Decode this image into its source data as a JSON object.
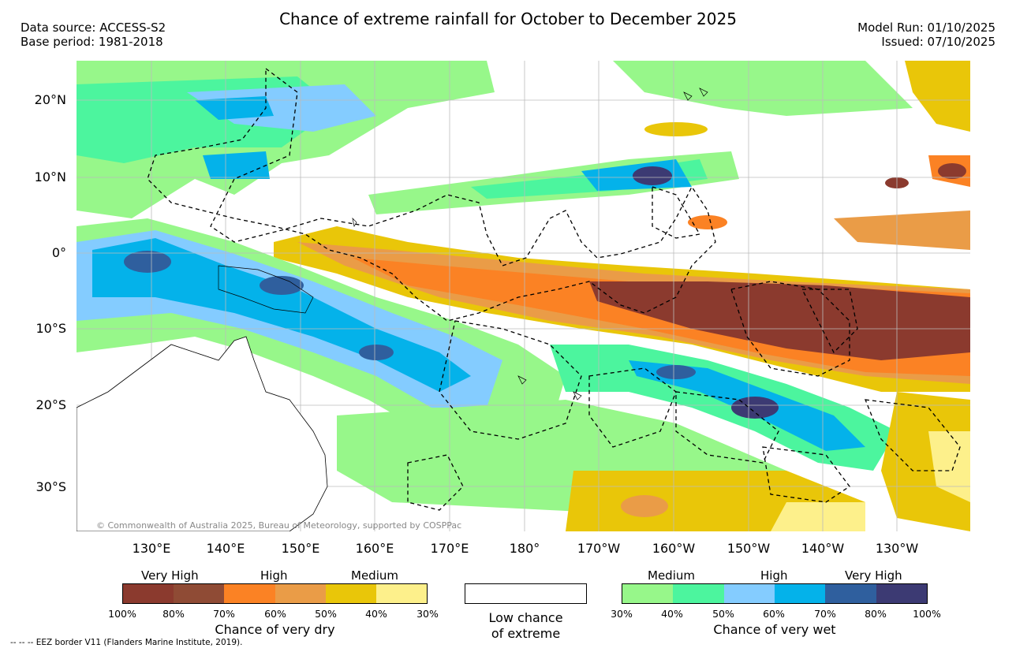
{
  "header": {
    "data_source": "Data source: ACCESS-S2",
    "base_period": "Base period: 1981-2018",
    "title": "Chance of extreme rainfall for October to December 2025",
    "model_run": "Model Run: 01/10/2025",
    "issued": "Issued: 07/10/2025"
  },
  "map": {
    "lat_labels": [
      "20°N",
      "10°N",
      "0°",
      "10°S",
      "20°S",
      "30°S"
    ],
    "lon_labels": [
      "130°E",
      "140°E",
      "150°E",
      "160°E",
      "170°E",
      "180°",
      "170°W",
      "160°W",
      "150°W",
      "140°W",
      "130°W"
    ],
    "copyright": "© Commonwealth of Australia 2025, Bureau of Meteorology, supported by COSPPac"
  },
  "legend_dry": {
    "headers": [
      "Very High",
      "High",
      "Medium"
    ],
    "ticks": [
      "100%",
      "80%",
      "70%",
      "60%",
      "50%",
      "40%",
      "30%"
    ],
    "caption": "Chance of very dry",
    "colors": [
      "#8b3a2e",
      "#8f4b35",
      "#fb8224",
      "#ea9c47",
      "#e9c609",
      "#fdf08b"
    ]
  },
  "legend_low": {
    "caption_line1": "Low chance",
    "caption_line2": "of extreme"
  },
  "legend_wet": {
    "headers": [
      "Medium",
      "High",
      "Very High"
    ],
    "ticks": [
      "30%",
      "40%",
      "50%",
      "60%",
      "70%",
      "80%",
      "100%"
    ],
    "caption": "Chance of very wet",
    "colors": [
      "#97f78a",
      "#4cf59e",
      "#84ccff",
      "#04b2ea",
      "#2f5f9e",
      "#3c3a73"
    ]
  },
  "footer": {
    "eez": "-- -- -- EEZ border V11 (Flanders Marine Institute, 2019)."
  }
}
